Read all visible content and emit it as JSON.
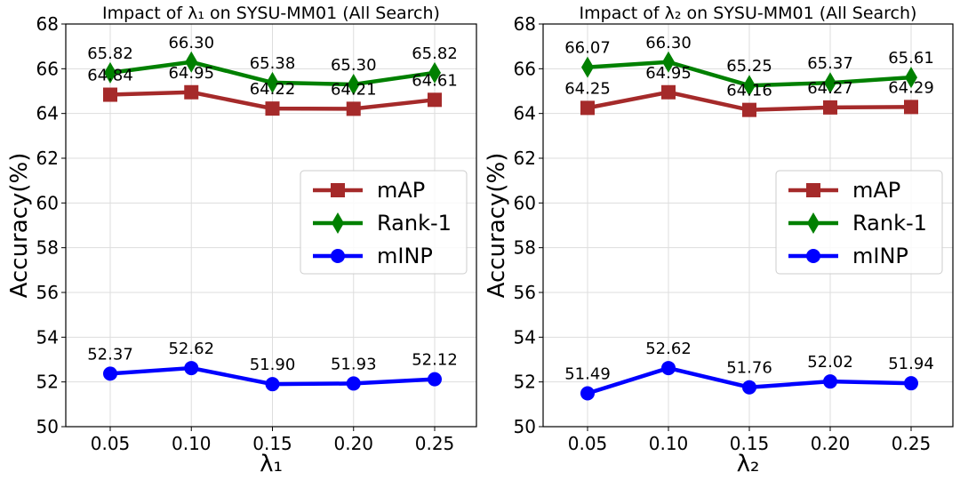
{
  "chart_data": [
    {
      "type": "line",
      "title": "Impact of λ₁ on SYSU-MM01 (All Search)",
      "xlabel": "λ₁",
      "ylabel": "Accuracy(%)",
      "categories": [
        "0.05",
        "0.10",
        "0.15",
        "0.20",
        "0.25"
      ],
      "ylim": [
        50,
        68
      ],
      "yticks": [
        "50",
        "52",
        "54",
        "56",
        "58",
        "60",
        "62",
        "64",
        "66",
        "68"
      ],
      "grid": true,
      "legend_position": "center-right",
      "series": [
        {
          "name": "mAP",
          "marker": "square",
          "color": "#a52a2a",
          "values": [
            64.84,
            64.95,
            64.22,
            64.21,
            64.61
          ],
          "labels": [
            "64.84",
            "64.95",
            "64.22",
            "64.21",
            "64.61"
          ]
        },
        {
          "name": "Rank-1",
          "marker": "diamond",
          "color": "#008000",
          "values": [
            65.82,
            66.3,
            65.38,
            65.3,
            65.82
          ],
          "labels": [
            "65.82",
            "66.30",
            "65.38",
            "65.30",
            "65.82"
          ]
        },
        {
          "name": "mINP",
          "marker": "circle",
          "color": "#0000ff",
          "values": [
            52.37,
            52.62,
            51.9,
            51.93,
            52.12
          ],
          "labels": [
            "52.37",
            "52.62",
            "51.90",
            "51.93",
            "52.12"
          ]
        }
      ]
    },
    {
      "type": "line",
      "title": "Impact of λ₂ on SYSU-MM01 (All Search)",
      "xlabel": "λ₂",
      "ylabel": "Accuracy(%)",
      "categories": [
        "0.05",
        "0.10",
        "0.15",
        "0.20",
        "0.25"
      ],
      "ylim": [
        50,
        68
      ],
      "yticks": [
        "50",
        "52",
        "54",
        "56",
        "58",
        "60",
        "62",
        "64",
        "66",
        "68"
      ],
      "grid": true,
      "legend_position": "center-right",
      "series": [
        {
          "name": "mAP",
          "marker": "square",
          "color": "#a52a2a",
          "values": [
            64.25,
            64.95,
            64.16,
            64.27,
            64.29
          ],
          "labels": [
            "64.25",
            "64.95",
            "64.16",
            "64.27",
            "64.29"
          ]
        },
        {
          "name": "Rank-1",
          "marker": "diamond",
          "color": "#008000",
          "values": [
            66.07,
            66.3,
            65.25,
            65.37,
            65.61
          ],
          "labels": [
            "66.07",
            "66.30",
            "65.25",
            "65.37",
            "65.61"
          ]
        },
        {
          "name": "mINP",
          "marker": "circle",
          "color": "#0000ff",
          "values": [
            51.49,
            52.62,
            51.76,
            52.02,
            51.94
          ],
          "labels": [
            "51.49",
            "52.62",
            "51.76",
            "52.02",
            "51.94"
          ]
        }
      ]
    }
  ]
}
